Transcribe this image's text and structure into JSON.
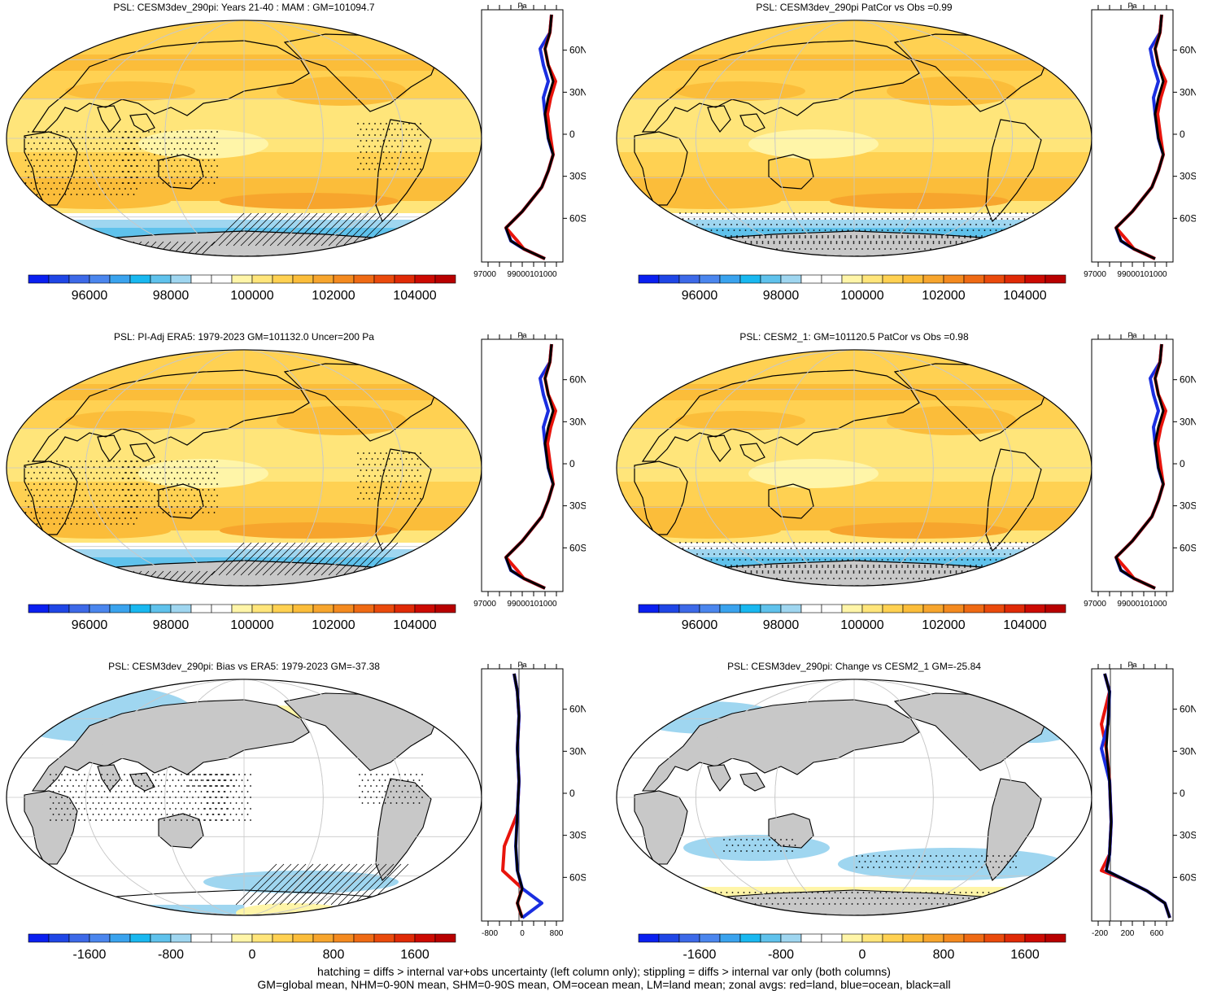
{
  "panels": [
    {
      "id": "model",
      "title": "PSL: CESM3dev_290pi: Years 21-40 : MAM : GM=101094.7",
      "kind": "abs",
      "antarctic": "full",
      "hatch_regions": [
        "south-pacific",
        "antarctic-pen"
      ],
      "stipple_regions": [
        "indian",
        "west-pacific",
        "atlantic-s"
      ],
      "colorbar_labels": [
        "96000",
        "98000",
        "100000",
        "102000",
        "104000"
      ],
      "zonal": {
        "unit": "Pa",
        "xticks": [
          "97000",
          "99000101000"
        ],
        "lat_labels": [
          "60N",
          "30N",
          "0",
          "30S",
          "60S"
        ],
        "xlim": [
          96000,
          102500
        ]
      }
    },
    {
      "id": "model-patcor",
      "title": "PSL: CESM3dev_290pi PatCor vs Obs =0.99",
      "kind": "abs",
      "antarctic": "full",
      "hatch_regions": [],
      "stipple_regions": [
        "south-ocean",
        "antarctica"
      ],
      "colorbar_labels": [
        "96000",
        "98000",
        "100000",
        "102000",
        "104000"
      ],
      "zonal": {
        "unit": "Pa",
        "xticks": [
          "97000",
          "99000101000"
        ],
        "lat_labels": [
          "60N",
          "30N",
          "0",
          "30S",
          "60S"
        ],
        "xlim": [
          96000,
          102500
        ]
      }
    },
    {
      "id": "obs",
      "title": "PSL: PI-Adj ERA5: 1979-2023 GM=101132.0 Uncer=200 Pa",
      "kind": "abs",
      "antarctic": "full",
      "hatch_regions": [
        "south-pacific",
        "antarctic-pen"
      ],
      "stipple_regions": [
        "indian",
        "west-pacific",
        "atlantic-s"
      ],
      "colorbar_labels": [
        "96000",
        "98000",
        "100000",
        "102000",
        "104000"
      ],
      "zonal": {
        "unit": "Pa",
        "xticks": [
          "97000",
          "99000101000"
        ],
        "lat_labels": [
          "60N",
          "30N",
          "0",
          "30S",
          "60S"
        ],
        "xlim": [
          96000,
          102500
        ]
      }
    },
    {
      "id": "cesm2",
      "title": "PSL: CESM2_1: GM=101120.5 PatCor vs Obs =0.98",
      "kind": "abs",
      "antarctic": "full",
      "hatch_regions": [],
      "stipple_regions": [
        "south-ocean",
        "antarctica"
      ],
      "colorbar_labels": [
        "96000",
        "98000",
        "100000",
        "102000",
        "104000"
      ],
      "zonal": {
        "unit": "Pa",
        "xticks": [
          "97000",
          "99000101000"
        ],
        "lat_labels": [
          "60N",
          "30N",
          "0",
          "30S",
          "60S"
        ],
        "xlim": [
          96000,
          102500
        ]
      }
    },
    {
      "id": "bias",
      "title": "PSL: CESM3dev_290pi: Bias vs ERA5: 1979-2023 GM=-37.38",
      "kind": "bias",
      "colorbar_labels": [
        "-1600",
        "-800",
        "0",
        "800",
        "1600"
      ],
      "zonal": {
        "unit": "Pa",
        "xticks": [
          "-800",
          "0",
          "800"
        ],
        "lat_labels": [
          "60N",
          "30N",
          "0",
          "30S",
          "60S"
        ],
        "xlim": [
          -1200,
          1200
        ]
      }
    },
    {
      "id": "change",
      "title": "PSL: CESM3dev_290pi: Change vs CESM2_1 GM=-25.84",
      "kind": "change",
      "colorbar_labels": [
        "-1600",
        "-800",
        "0",
        "800",
        "1600"
      ],
      "zonal": {
        "unit": "Pa",
        "xticks": [
          "-200",
          "200",
          "600"
        ],
        "lat_labels": [
          "60N",
          "30N",
          "0",
          "30S",
          "60S"
        ],
        "xlim": [
          -400,
          900
        ]
      }
    }
  ],
  "colors": {
    "abs": [
      "#0a1ff0",
      "#1f46e6",
      "#3d69e8",
      "#4b86ee",
      "#3aa3ee",
      "#19b8f0",
      "#5fc2ec",
      "#9fd6f0",
      "#ffffff",
      "#ffffff",
      "#fff5a8",
      "#ffe57a",
      "#ffd152",
      "#fbbd3a",
      "#f7a52d",
      "#f48a1f",
      "#ef6a14",
      "#ea4a0c",
      "#e02a06",
      "#cc0a02",
      "#b80000"
    ],
    "div": [
      "#0a1ff0",
      "#1f46e6",
      "#3d69e8",
      "#4b86ee",
      "#3aa3ee",
      "#19b8f0",
      "#5fc2ec",
      "#9fd6f0",
      "#ffffff",
      "#ffffff",
      "#fff5a8",
      "#ffe57a",
      "#ffd152",
      "#fbbd3a",
      "#f7a52d",
      "#f48a1f",
      "#ef6a14",
      "#ea4a0c",
      "#e02a06",
      "#cc0a02",
      "#b80000"
    ],
    "land_gray": "#c8c8c8",
    "series_land": "#e8140c",
    "series_ocean": "#1a2ee0",
    "series_all": "#000000"
  },
  "footer": {
    "line1": "hatching = diffs > internal var+obs uncertainty (left column only); stippling = diffs > internal var only (both columns)",
    "line2": "GM=global mean, NHM=0-90N mean, SHM=0-90S mean, OM=ocean mean, LM=land mean; zonal avgs: red=land, blue=ocean, black=all"
  }
}
